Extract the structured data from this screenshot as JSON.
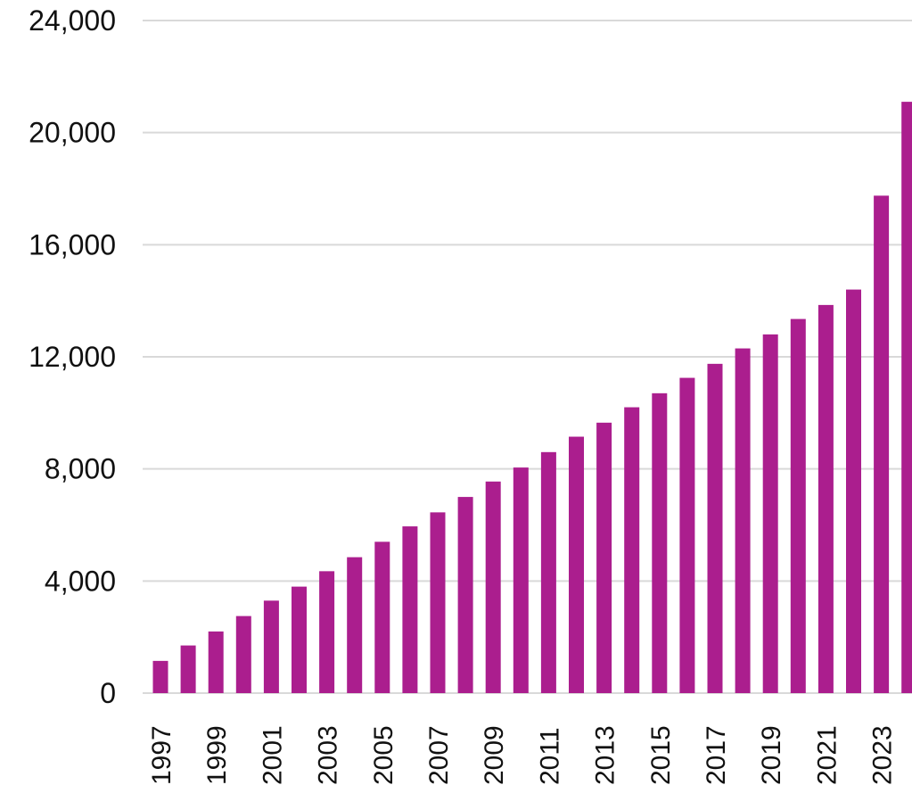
{
  "chart_data": {
    "type": "bar",
    "title": "",
    "xlabel": "",
    "ylabel": "",
    "ylim": [
      0,
      24000
    ],
    "yticks": [
      0,
      4000,
      8000,
      12000,
      16000,
      20000,
      24000
    ],
    "ytick_labels": [
      "0",
      "4,000",
      "8,000",
      "12,000",
      "16,000",
      "20,000",
      "24,000"
    ],
    "grid": true,
    "bar_color": "#ab1e8e",
    "categories": [
      "1997",
      "1998",
      "1999",
      "2000",
      "2001",
      "2002",
      "2003",
      "2004",
      "2005",
      "2006",
      "2007",
      "2008",
      "2009",
      "2010",
      "2011",
      "2012",
      "2013",
      "2014",
      "2015",
      "2016",
      "2017",
      "2018",
      "2019",
      "2020",
      "2021",
      "2022",
      "2023",
      "2024"
    ],
    "xtick_labels": [
      "1997",
      "1999",
      "2001",
      "2003",
      "2005",
      "2007",
      "2009",
      "2011",
      "2013",
      "2015",
      "2017",
      "2019",
      "2021",
      "2023"
    ],
    "values": [
      1150,
      1700,
      2200,
      2750,
      3300,
      3800,
      4350,
      4850,
      5400,
      5950,
      6450,
      7000,
      7550,
      8050,
      8600,
      9150,
      9650,
      10200,
      10700,
      11250,
      11750,
      12300,
      12800,
      13350,
      13850,
      14400,
      17750,
      21100
    ]
  }
}
